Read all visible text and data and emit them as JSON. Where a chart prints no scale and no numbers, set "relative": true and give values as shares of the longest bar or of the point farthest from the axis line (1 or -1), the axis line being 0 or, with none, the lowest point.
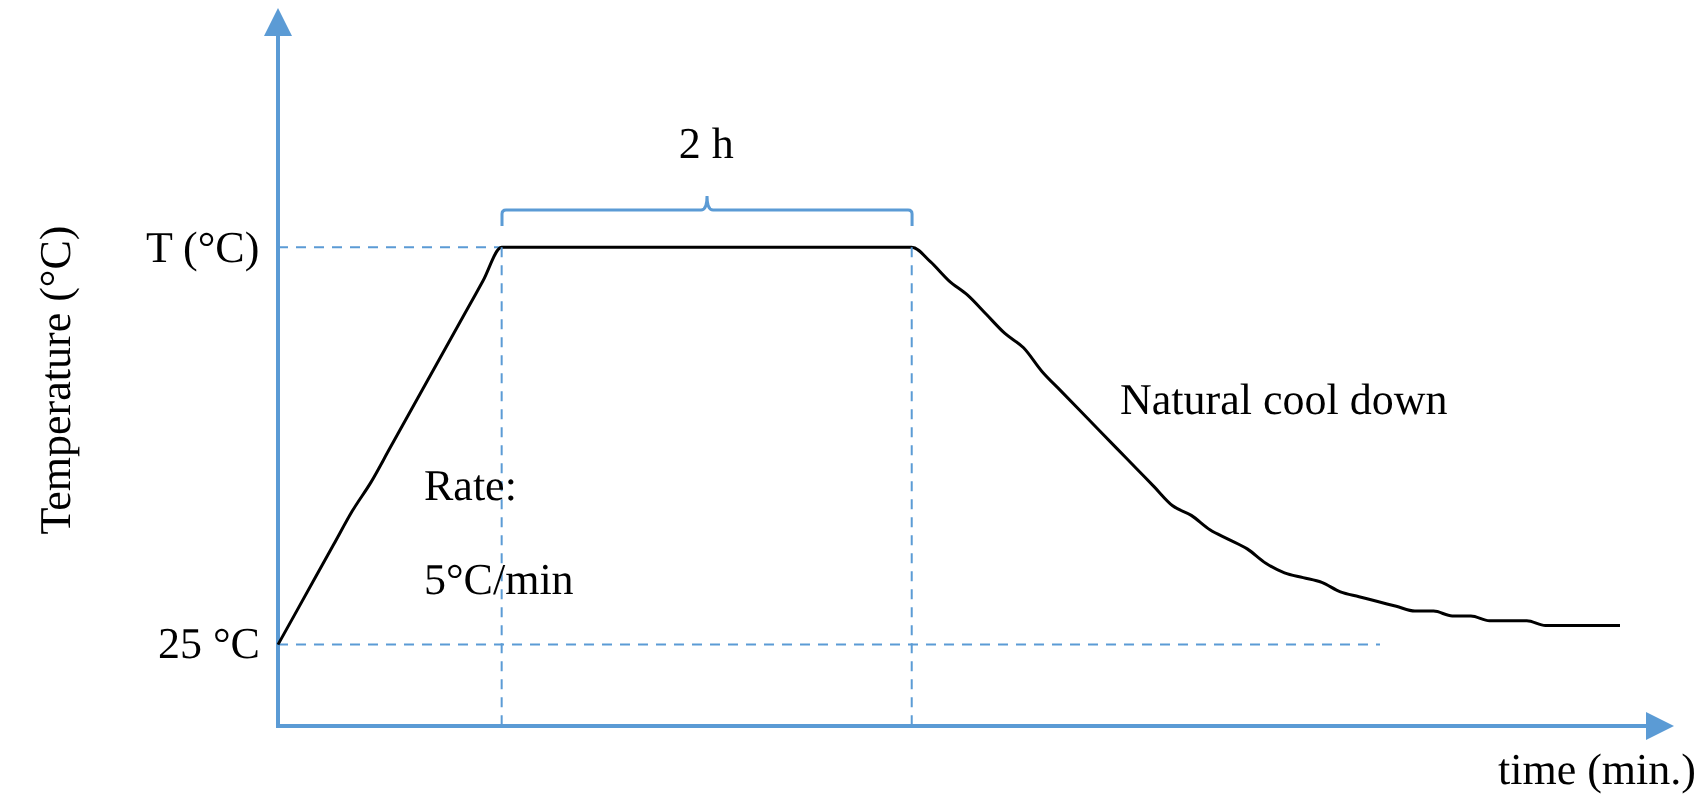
{
  "chart_data": {
    "type": "line",
    "relative": true,
    "xlabel": "time (min.)",
    "ylabel": "Temperature (°C)",
    "categories": [
      null,
      null,
      null,
      null,
      null,
      null,
      null,
      null,
      null,
      null,
      null,
      null,
      null,
      null,
      null,
      null,
      null,
      null,
      null,
      null,
      null,
      null,
      null,
      null,
      null,
      null,
      null,
      null,
      null,
      null,
      null,
      null,
      null,
      null,
      null,
      null,
      null,
      null,
      null,
      null,
      null,
      null,
      null,
      null,
      null,
      null,
      null,
      null,
      null,
      null,
      null,
      null,
      null,
      null,
      null,
      null,
      null,
      null,
      null,
      null,
      null,
      null,
      null,
      null,
      null,
      null,
      null,
      null,
      null,
      null,
      null,
      null,
      null
    ],
    "series": [
      {
        "color": "#000000",
        "values": [
          0.17,
          0.24,
          0.31,
          0.38,
          0.45,
          0.51,
          0.58,
          0.65,
          0.72,
          0.79,
          0.86,
          0.93,
          1,
          1,
          1,
          1,
          1,
          1,
          1,
          1,
          1,
          1,
          1,
          1,
          1,
          1,
          1,
          1,
          1,
          1,
          1,
          1,
          1,
          1,
          1,
          0.97,
          0.93,
          0.9,
          0.86,
          0.82,
          0.79,
          0.74,
          0.7,
          0.66,
          0.62,
          0.58,
          0.54,
          0.5,
          0.46,
          0.44,
          0.41,
          0.39,
          0.37,
          0.34,
          0.32,
          0.31,
          0.3,
          0.28,
          0.27,
          0.26,
          0.25,
          0.24,
          0.24,
          0.23,
          0.23,
          0.22,
          0.22,
          0.22,
          0.21,
          0.21,
          0.21,
          0.21,
          0.21
        ]
      }
    ],
    "ref_lines": [
      {
        "axis": "y",
        "value": 1,
        "label": "T (°C)",
        "color": "#5b9bd5",
        "line_style": "dashed"
      },
      {
        "axis": "y",
        "value": 0.17,
        "label": "25 °C",
        "color": "#5b9bd5",
        "line_style": "dashed"
      }
    ],
    "annotations": [
      "2 h",
      "Rate:",
      "5°C/min",
      "Natural cool down"
    ],
    "grid": false,
    "legend": false,
    "marker": "none",
    "line_style": "solid"
  }
}
